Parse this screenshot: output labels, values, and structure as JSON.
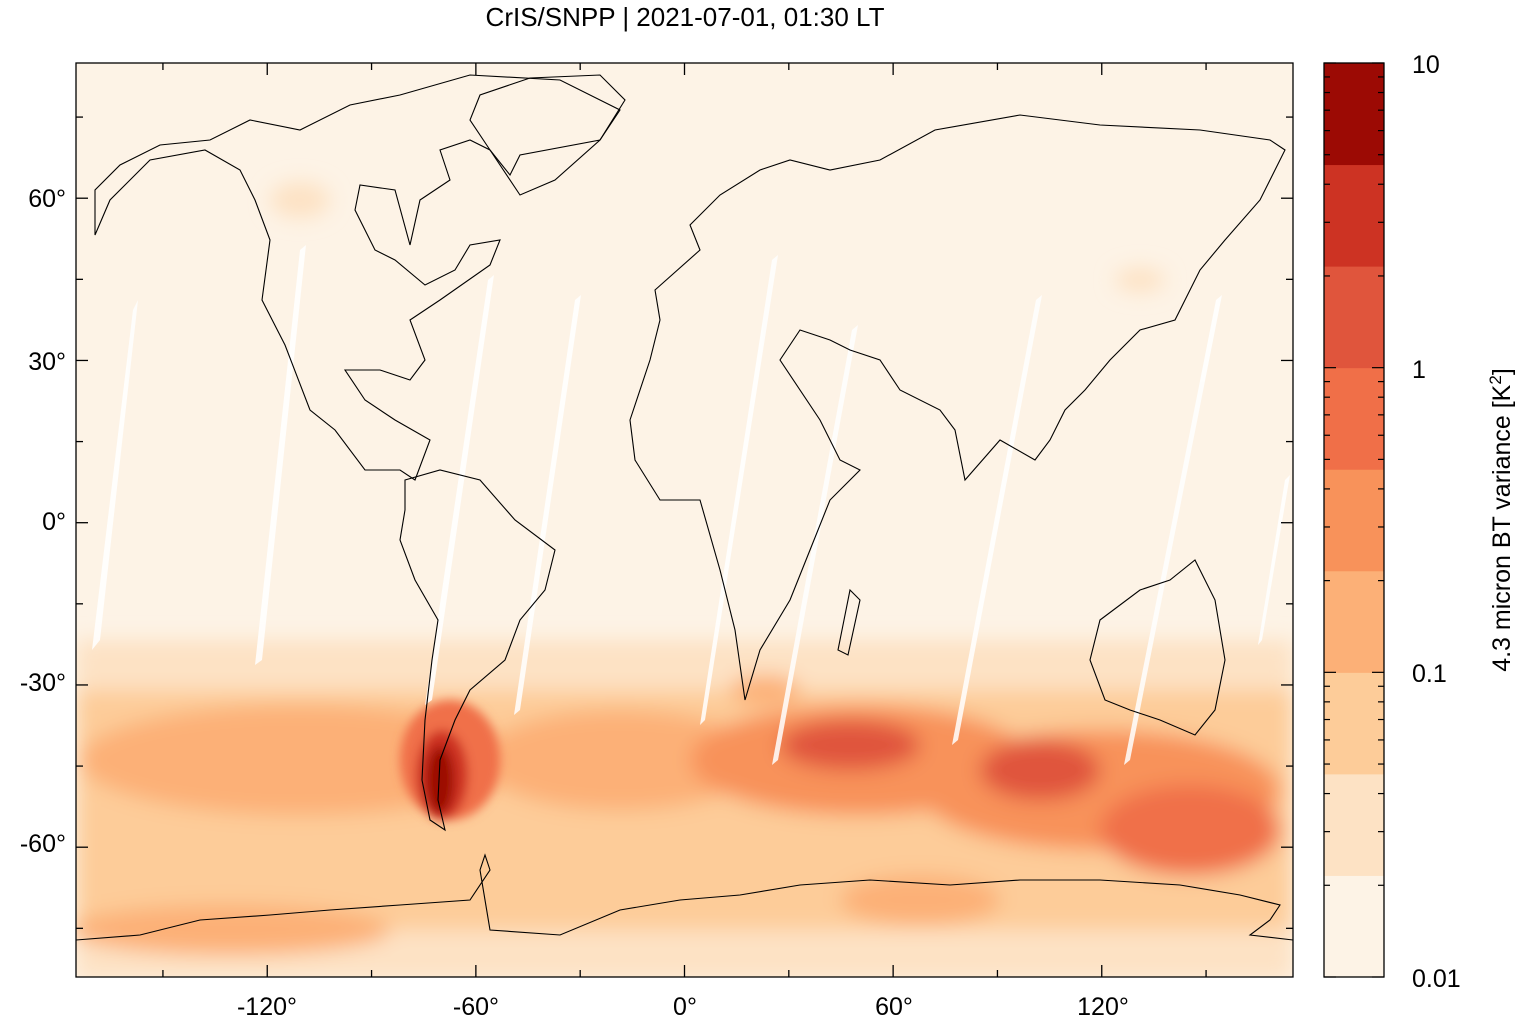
{
  "title": "CrIS/SNPP | 2021-07-01, 01:30 LT",
  "map": {
    "x_ticks": [
      "-120°",
      "-60°",
      "0°",
      "60°",
      "120°"
    ],
    "x_tick_values": [
      -120,
      -60,
      0,
      60,
      120
    ],
    "y_ticks": [
      "60°",
      "30°",
      "0°",
      "-30°",
      "-60°"
    ],
    "y_tick_values": [
      60,
      30,
      0,
      -30,
      -60
    ],
    "lon_range": [
      -175,
      175
    ],
    "lat_range": [
      -84,
      85
    ]
  },
  "colorbar": {
    "label": "4.3 micron BT variance [K",
    "label_sup": "2",
    "label_end": "]",
    "tick_labels": [
      "10",
      "1",
      "0.1",
      "0.01"
    ],
    "scale": "log",
    "range": [
      0.01,
      10
    ],
    "colors": [
      "#fdf3e6",
      "#fde2c4",
      "#fdcc99",
      "#fcb077",
      "#f8925a",
      "#f06f48",
      "#e0553c",
      "#cd3323",
      "#9c0a04"
    ]
  },
  "features": {
    "peak_region": "Patagonia",
    "peak_color": "#9c0a04",
    "background_color": "#fdf3e6",
    "swath_gap_color": "#ffffff"
  }
}
